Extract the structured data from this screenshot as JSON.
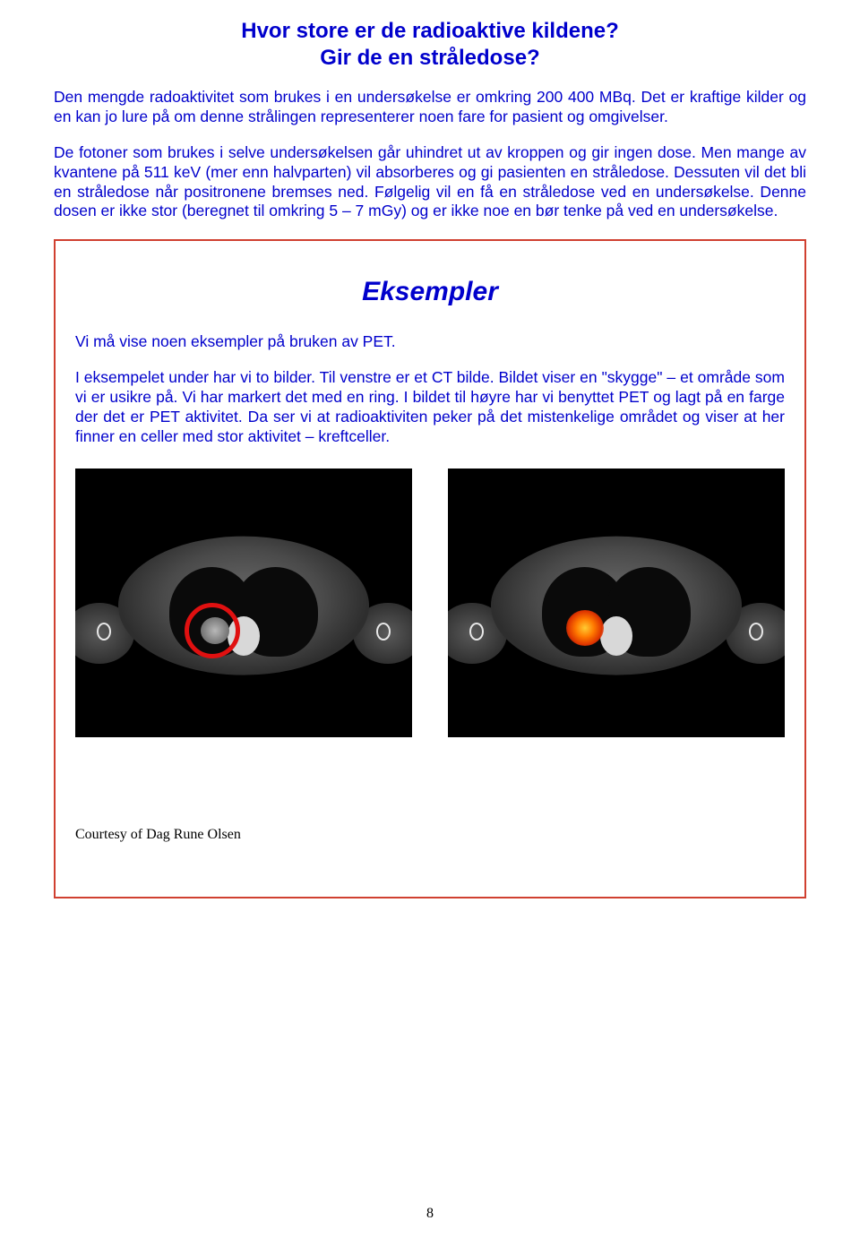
{
  "title_line1": "Hvor store er de radioaktive kildene?",
  "title_line2": "Gir de en stråledose?",
  "para1": "Den mengde radoaktivitet som brukes i en undersøkelse er omkring 200 400 MBq. Det er kraftige kilder og en kan jo lure på om denne strålingen representerer noen fare for pasient og omgivelser.",
  "para2": "De fotoner som brukes i selve undersøkelsen går uhindret ut av kroppen og gir ingen dose. Men mange av kvantene på 511 keV (mer enn halvparten) vil absorberes og gi pasienten en stråledose. Dessuten vil det bli en stråledose når positronene bremses ned. Følgelig vil en få en stråledose ved en undersøkelse. Denne dosen er ikke stor (beregnet til omkring 5 – 7 mGy) og er ikke noe en bør tenke på ved en undersøkelse.",
  "ex_title": "Eksempler",
  "ex_para1": "Vi må vise noen eksempler på bruken av PET.",
  "ex_para2": "I eksempelet under har vi to bilder. Til venstre er et CT bilde. Bildet viser en \"skygge\" – et område som vi er usikre på. Vi har markert det med en ring. I bildet til høyre har vi benyttet PET og lagt på en farge der det er PET aktivitet. Da ser vi at radioaktiviten peker på det mistenkelige området og viser at her finner en celler med stor aktivitet – kreftceller.",
  "credit": "Courtesy of Dag Rune Olsen",
  "page_number": "8",
  "colors": {
    "text_blue": "#0000cc",
    "box_border": "#d04030",
    "ring_red": "#e01010",
    "pet_glow_center": "#ffcc33",
    "pet_glow_outer": "#dd3300",
    "scan_bg": "#000000"
  }
}
